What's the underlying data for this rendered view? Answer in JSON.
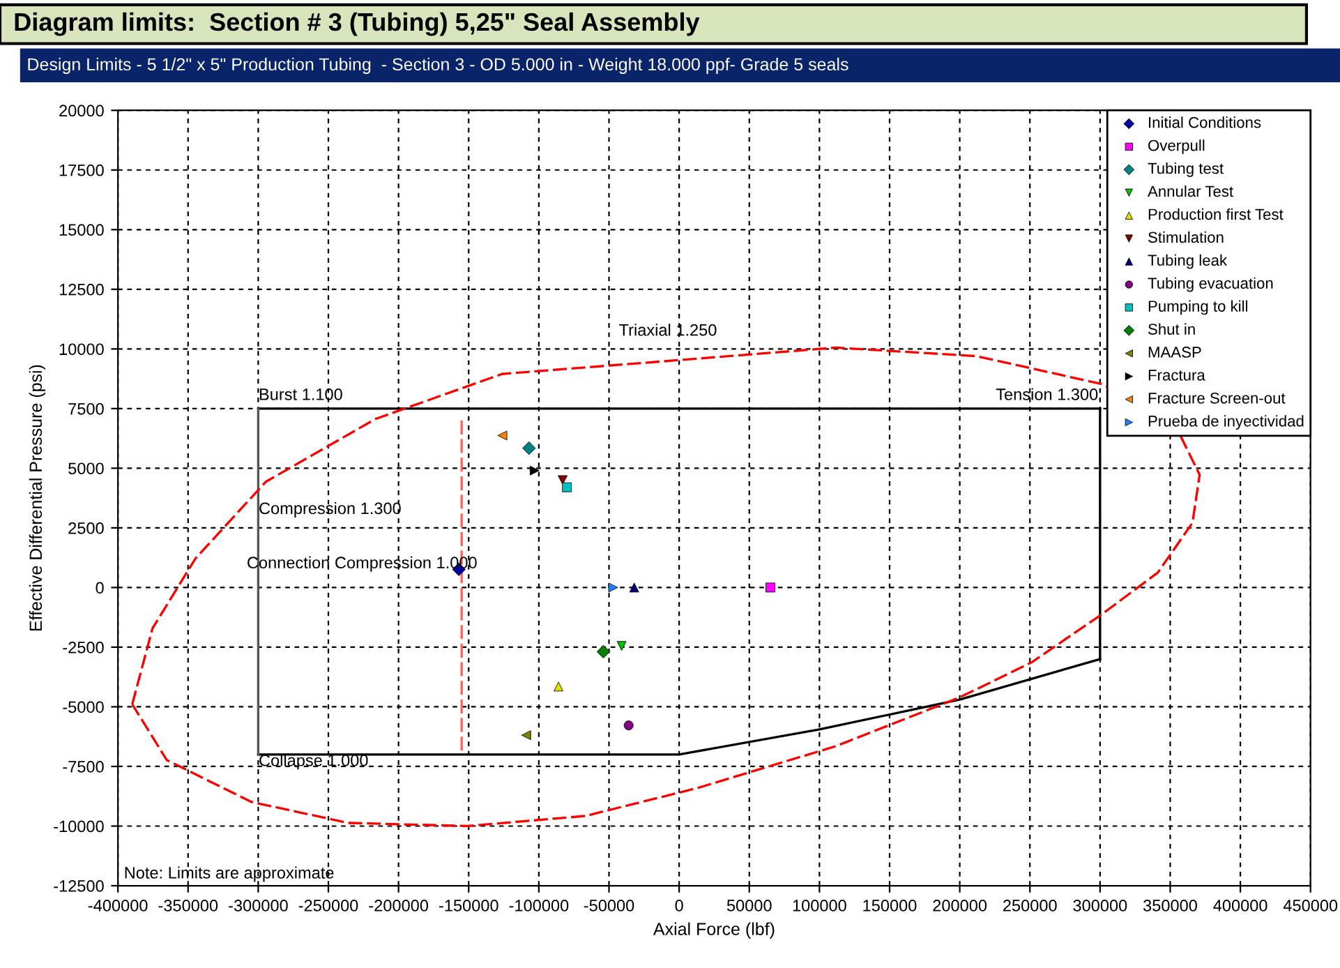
{
  "chart_data": {
    "type": "scatter",
    "title": "Diagram limits:  Section # 3 (Tubing) 5,25\" Seal Assembly",
    "subtitle": "Design Limits - 5 1/2\" x 5\" Production Tubing  - Section 3 - OD 5.000 in - Weight 18.000 ppf- Grade 5 seals",
    "xlabel": "Axial Force (lbf)",
    "ylabel": "Effective Differential Pressure (psi)",
    "xlim": [
      -400000,
      450000
    ],
    "ylim": [
      -12500,
      20000
    ],
    "xticks": [
      -400000,
      -350000,
      -300000,
      -250000,
      -200000,
      -150000,
      -100000,
      -50000,
      0,
      50000,
      100000,
      150000,
      200000,
      250000,
      300000,
      350000,
      400000,
      450000
    ],
    "yticks": [
      -12500,
      -10000,
      -7500,
      -5000,
      -2500,
      0,
      2500,
      5000,
      7500,
      10000,
      12500,
      15000,
      17500,
      20000
    ],
    "grid": true,
    "legend": "top right",
    "series": [
      {
        "type": "line",
        "color": "#000000",
        "line_style": "solid",
        "marker": "none",
        "x": [
          -300000,
          300000
        ],
        "values": [
          7500,
          7500
        ]
      },
      {
        "type": "line",
        "color": "#000000",
        "line_style": "solid",
        "marker": "none",
        "x": [
          300000,
          300000
        ],
        "values": [
          7500,
          -3000
        ]
      },
      {
        "type": "line",
        "color": "#000000",
        "line_style": "solid",
        "marker": "none",
        "x": [
          -300000,
          0,
          100000,
          200000,
          300000
        ],
        "values": [
          -7000,
          -7000,
          -5950,
          -4700,
          -3000
        ]
      },
      {
        "type": "line",
        "color": "#555555",
        "line_style": "solid",
        "marker": "none",
        "x": [
          -300000,
          -300000
        ],
        "values": [
          7500,
          -7000
        ]
      },
      {
        "type": "line",
        "color": "#ff6060",
        "line_style": "dashed",
        "marker": "none",
        "x": [
          -155000,
          -155000
        ],
        "values": [
          7000,
          -7000
        ]
      },
      {
        "name": "Initial Conditions",
        "color": "#0000a0",
        "marker": "diamond",
        "x": [
          -157000
        ],
        "values": [
          760
        ]
      },
      {
        "name": "Overpull",
        "color": "#ff00ff",
        "marker": "square",
        "x": [
          65000
        ],
        "values": [
          0
        ]
      },
      {
        "name": "Tubing test",
        "color": "#008080",
        "marker": "diamond",
        "x": [
          -107000
        ],
        "values": [
          5840
        ]
      },
      {
        "name": "Annular Test",
        "color": "#00c000",
        "marker": "triangle_down",
        "x": [
          -41000
        ],
        "values": [
          -2450
        ]
      },
      {
        "name": "Production first Test",
        "color": "#e0e000",
        "marker": "triangle",
        "x": [
          -86000
        ],
        "values": [
          -4150
        ]
      },
      {
        "name": "Stimulation",
        "color": "#800000",
        "marker": "triangle_down",
        "x": [
          -83000
        ],
        "values": [
          4500
        ]
      },
      {
        "name": "Tubing leak",
        "color": "#000080",
        "marker": "triangle",
        "x": [
          -32000
        ],
        "values": [
          0
        ]
      },
      {
        "name": "Tubing evacuation",
        "color": "#800080",
        "marker": "circle",
        "x": [
          -36000
        ],
        "values": [
          -5780
        ]
      },
      {
        "name": "Pumping to kill",
        "color": "#00c0c0",
        "marker": "square",
        "x": [
          -80000
        ],
        "values": [
          4200
        ]
      },
      {
        "name": "Shut in",
        "color": "#008000",
        "marker": "diamond",
        "x": [
          -54000
        ],
        "values": [
          -2690
        ]
      },
      {
        "name": "MAASP",
        "color": "#808000",
        "marker": "triangle_left",
        "x": [
          -109000
        ],
        "values": [
          -6190
        ]
      },
      {
        "name": "Fractura",
        "color": "#000000",
        "marker": "triangle_right",
        "x": [
          -103000
        ],
        "values": [
          4900
        ]
      },
      {
        "name": "Fracture Screen-out",
        "color": "#ff8000",
        "marker": "triangle_left",
        "x": [
          -126000
        ],
        "values": [
          6370
        ]
      },
      {
        "name": "Prueba de inyectividad",
        "color": "#2080ff",
        "marker": "triangle_right",
        "x": [
          -47000
        ],
        "values": [
          0
        ]
      }
    ],
    "annotations": [
      "Triaxial 1.250",
      "Burst 1.100",
      "Tension 1.300",
      "Compression 1.300",
      "Connection Compression 1.000",
      "Collapse 1.000",
      "Note: Limits are approximate"
    ]
  }
}
